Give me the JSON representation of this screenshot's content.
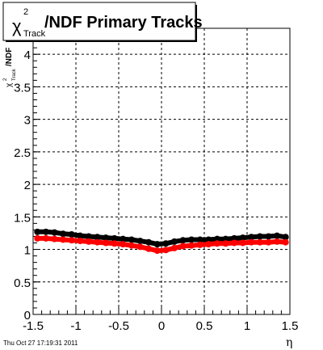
{
  "chart_data": {
    "type": "scatter",
    "title": {
      "main": "/NDF  Primary Tracks",
      "chi": "χ",
      "superscript": "2",
      "subscript": "Track"
    },
    "ylabel": {
      "chi": "χ",
      "superscript": "2",
      "subscript": "Track",
      "suffix": "/NDF"
    },
    "xlabel": "η",
    "xlim": [
      -1.5,
      1.5
    ],
    "ylim": [
      0,
      4.4
    ],
    "x_ticks": [
      -1.5,
      -1,
      -0.5,
      0,
      0.5,
      1,
      1.5
    ],
    "x_tick_labels": [
      "-1.5",
      "-1",
      "-0.5",
      "0",
      "0.5",
      "1",
      "1.5"
    ],
    "y_ticks": [
      0,
      0.5,
      1,
      1.5,
      2,
      2.5,
      3,
      3.5,
      4
    ],
    "y_tick_labels": [
      "0",
      "0.5",
      "1",
      "1.5",
      "2",
      "2.5",
      "3",
      "3.5",
      "4"
    ],
    "grid": true,
    "colors": {
      "series_a": "#000000",
      "series_b": "#ff0000"
    },
    "series": [
      {
        "color": "#000000",
        "x": [
          -1.45,
          -1.35,
          -1.25,
          -1.15,
          -1.05,
          -0.95,
          -0.85,
          -0.75,
          -0.65,
          -0.55,
          -0.45,
          -0.35,
          -0.25,
          -0.15,
          -0.05,
          0.05,
          0.15,
          0.25,
          0.35,
          0.45,
          0.55,
          0.65,
          0.75,
          0.85,
          0.95,
          1.05,
          1.15,
          1.25,
          1.35,
          1.45
        ],
        "y": [
          1.27,
          1.27,
          1.26,
          1.24,
          1.23,
          1.21,
          1.2,
          1.19,
          1.18,
          1.17,
          1.16,
          1.15,
          1.13,
          1.11,
          1.08,
          1.09,
          1.12,
          1.14,
          1.15,
          1.15,
          1.15,
          1.16,
          1.16,
          1.17,
          1.18,
          1.19,
          1.2,
          1.2,
          1.21,
          1.19
        ]
      },
      {
        "color": "#ff0000",
        "x": [
          -1.45,
          -1.35,
          -1.25,
          -1.15,
          -1.05,
          -0.95,
          -0.85,
          -0.75,
          -0.65,
          -0.55,
          -0.45,
          -0.35,
          -0.25,
          -0.15,
          -0.05,
          0.05,
          0.15,
          0.25,
          0.35,
          0.45,
          0.55,
          0.65,
          0.75,
          0.85,
          0.95,
          1.05,
          1.15,
          1.25,
          1.35,
          1.45
        ],
        "y": [
          1.17,
          1.17,
          1.16,
          1.15,
          1.14,
          1.13,
          1.12,
          1.11,
          1.1,
          1.09,
          1.08,
          1.06,
          1.04,
          1.01,
          0.98,
          0.99,
          1.02,
          1.05,
          1.06,
          1.07,
          1.08,
          1.09,
          1.09,
          1.1,
          1.1,
          1.11,
          1.11,
          1.11,
          1.12,
          1.11
        ]
      }
    ]
  },
  "footer": {
    "timestamp": "Thu Oct 27 17:19:31 2011"
  }
}
